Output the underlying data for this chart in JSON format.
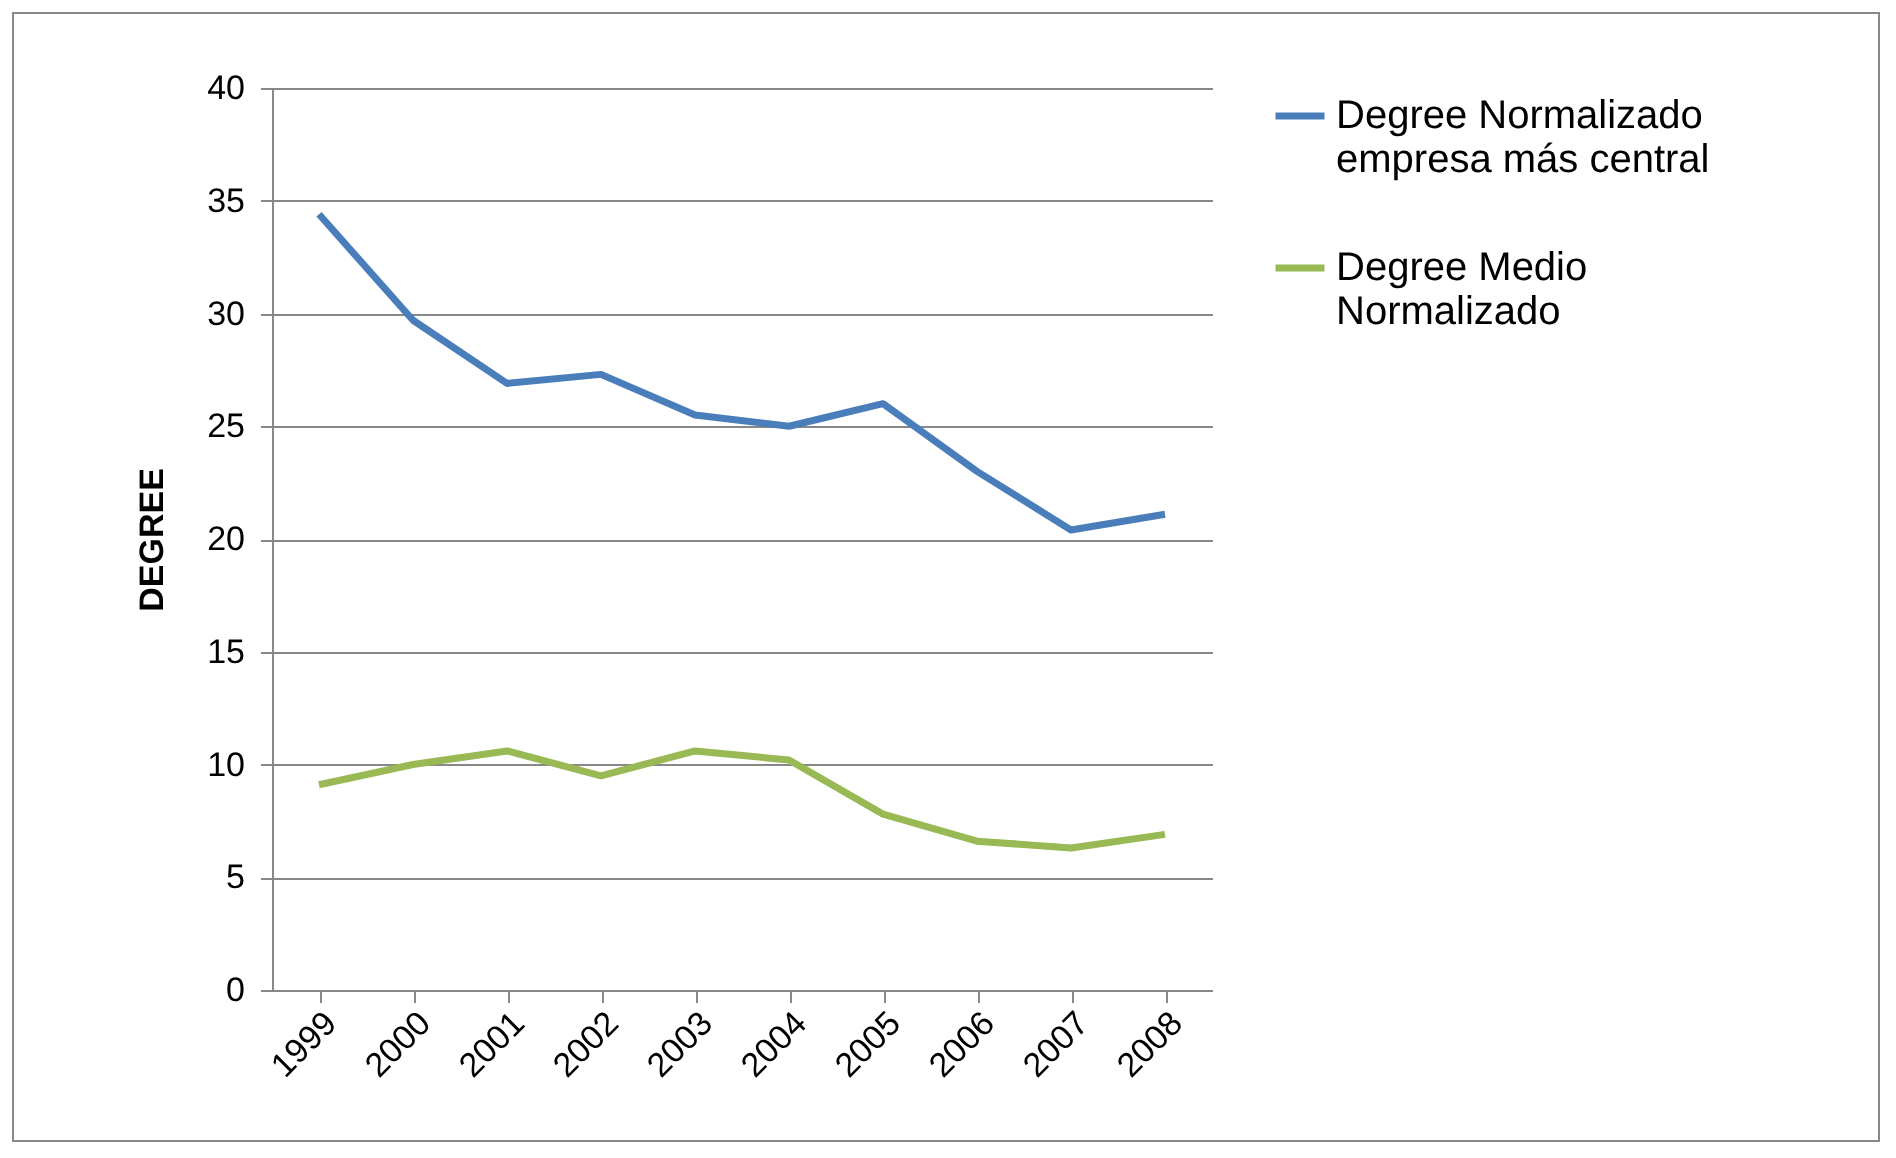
{
  "chart_data": {
    "type": "line",
    "ylabel": "DEGREE",
    "categories": [
      "1999",
      "2000",
      "2001",
      "2002",
      "2003",
      "2004",
      "2005",
      "2006",
      "2007",
      "2008"
    ],
    "series": [
      {
        "name": "Degree Normalizado empresa más central",
        "color": "#4a7ebb",
        "values": [
          34.4,
          29.7,
          26.9,
          27.3,
          25.5,
          25.0,
          26.0,
          23.0,
          20.4,
          21.1
        ]
      },
      {
        "name": "Degree Medio Normalizado",
        "color": "#98b954",
        "values": [
          9.1,
          10.0,
          10.6,
          9.5,
          10.6,
          10.2,
          7.8,
          6.6,
          6.3,
          6.9
        ]
      }
    ],
    "ylim": [
      0,
      40
    ],
    "yticks": [
      0,
      5,
      10,
      15,
      20,
      25,
      30,
      35,
      40
    ],
    "grid": "y",
    "legend": "right",
    "marker": "none",
    "line_style": "solid"
  }
}
